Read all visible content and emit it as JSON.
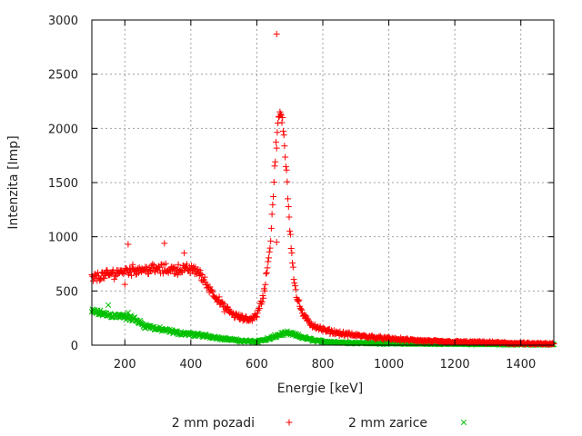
{
  "chart_data": {
    "type": "scatter",
    "xlabel": "Energie [keV]",
    "ylabel": "Intenzita [Imp]",
    "xlim": [
      100,
      1500
    ],
    "ylim": [
      0,
      3000
    ],
    "xticks": [
      200,
      400,
      600,
      800,
      1000,
      1200,
      1400
    ],
    "yticks": [
      0,
      500,
      1000,
      1500,
      2000,
      2500,
      3000
    ],
    "grid": true,
    "legend_position": "bottom",
    "series": [
      {
        "name": "2 mm pozadi",
        "marker": "+",
        "color": "#ff0000",
        "x": [
          100,
          150,
          200,
          250,
          300,
          350,
          400,
          420,
          450,
          480,
          500,
          530,
          560,
          580,
          600,
          620,
          640,
          650,
          660,
          670,
          680,
          690,
          700,
          710,
          720,
          740,
          760,
          800,
          850,
          900,
          1000,
          1100,
          1200,
          1300,
          1400,
          1500
        ],
        "y": [
          620,
          650,
          690,
          700,
          700,
          700,
          700,
          690,
          550,
          430,
          350,
          280,
          240,
          240,
          280,
          450,
          900,
          1400,
          1900,
          2150,
          2000,
          1600,
          1100,
          700,
          450,
          280,
          200,
          140,
          110,
          90,
          60,
          40,
          30,
          25,
          15,
          10
        ],
        "outliers": [
          [
            210,
            930
          ],
          [
            320,
            940
          ],
          [
            660,
            2870
          ],
          [
            660,
            950
          ],
          [
            380,
            850
          ],
          [
            200,
            560
          ]
        ]
      },
      {
        "name": "2 mm zarice",
        "marker": "x",
        "color": "#00c000",
        "x": [
          100,
          150,
          200,
          230,
          260,
          300,
          350,
          400,
          450,
          500,
          550,
          600,
          640,
          670,
          690,
          710,
          740,
          780,
          850,
          1000,
          1500
        ],
        "y": [
          310,
          280,
          260,
          240,
          180,
          150,
          120,
          100,
          85,
          60,
          40,
          35,
          60,
          100,
          110,
          100,
          70,
          40,
          25,
          15,
          5
        ],
        "outliers": [
          [
            150,
            370
          ],
          [
            210,
            300
          ]
        ]
      }
    ]
  }
}
